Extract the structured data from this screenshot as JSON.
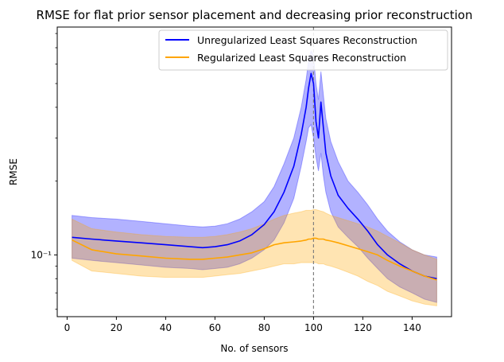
{
  "chart_data": {
    "type": "line",
    "title": "RMSE for flat prior sensor placement and decreasing prior reconstruction",
    "xlabel": "No. of sensors",
    "ylabel": "RMSE",
    "xlim": [
      -4,
      156
    ],
    "ylim": [
      0.056,
      0.85
    ],
    "yscale": "log",
    "x_ticks": [
      0,
      20,
      40,
      60,
      80,
      100,
      120,
      140
    ],
    "y_tick_major": [
      0.1
    ],
    "y_tick_major_labels": [
      "10⁻¹"
    ],
    "y_tick_minor": [
      0.06,
      0.07,
      0.08,
      0.09,
      0.2,
      0.3,
      0.4,
      0.5,
      0.6,
      0.7,
      0.8
    ],
    "grid": false,
    "legend": "top-right",
    "vline": {
      "x": 100,
      "color": "#808080",
      "style": "dashed"
    },
    "x": [
      2,
      10,
      20,
      30,
      40,
      50,
      55,
      60,
      65,
      70,
      75,
      80,
      84,
      88,
      92,
      95,
      97,
      98,
      99,
      100,
      101,
      102,
      103,
      104,
      105,
      107,
      110,
      114,
      118,
      122,
      126,
      130,
      135,
      140,
      145,
      150
    ],
    "series": [
      {
        "name": "Unregularized Least Squares Reconstruction",
        "color": "#0000ff",
        "band_color": "#0000ff",
        "values": [
          0.118,
          0.116,
          0.114,
          0.112,
          0.11,
          0.108,
          0.107,
          0.108,
          0.11,
          0.114,
          0.121,
          0.133,
          0.15,
          0.18,
          0.23,
          0.31,
          0.4,
          0.48,
          0.55,
          0.5,
          0.35,
          0.3,
          0.42,
          0.33,
          0.26,
          0.21,
          0.175,
          0.155,
          0.14,
          0.125,
          0.11,
          0.1,
          0.092,
          0.086,
          0.082,
          0.08
        ],
        "lower": [
          0.097,
          0.095,
          0.093,
          0.091,
          0.089,
          0.088,
          0.087,
          0.088,
          0.089,
          0.092,
          0.097,
          0.105,
          0.115,
          0.135,
          0.17,
          0.23,
          0.29,
          0.33,
          0.34,
          0.3,
          0.25,
          0.22,
          0.26,
          0.21,
          0.18,
          0.15,
          0.13,
          0.118,
          0.108,
          0.097,
          0.088,
          0.08,
          0.074,
          0.07,
          0.066,
          0.064
        ],
        "upper": [
          0.145,
          0.142,
          0.14,
          0.137,
          0.134,
          0.131,
          0.13,
          0.131,
          0.134,
          0.14,
          0.15,
          0.165,
          0.19,
          0.235,
          0.3,
          0.4,
          0.52,
          0.62,
          0.68,
          0.65,
          0.5,
          0.43,
          0.56,
          0.45,
          0.36,
          0.29,
          0.24,
          0.2,
          0.18,
          0.16,
          0.14,
          0.125,
          0.113,
          0.105,
          0.1,
          0.098
        ]
      },
      {
        "name": "Regularized Least Squares Reconstruction",
        "color": "#ffa500",
        "band_color": "#ffa500",
        "values": [
          0.115,
          0.105,
          0.101,
          0.099,
          0.097,
          0.096,
          0.096,
          0.097,
          0.098,
          0.1,
          0.102,
          0.106,
          0.11,
          0.112,
          0.113,
          0.114,
          0.115,
          0.116,
          0.116,
          0.117,
          0.117,
          0.116,
          0.116,
          0.116,
          0.115,
          0.114,
          0.112,
          0.109,
          0.106,
          0.103,
          0.1,
          0.095,
          0.09,
          0.086,
          0.082,
          0.079
        ],
        "lower": [
          0.095,
          0.086,
          0.084,
          0.082,
          0.081,
          0.081,
          0.081,
          0.082,
          0.083,
          0.084,
          0.086,
          0.088,
          0.09,
          0.092,
          0.092,
          0.093,
          0.093,
          0.093,
          0.093,
          0.093,
          0.093,
          0.092,
          0.092,
          0.092,
          0.091,
          0.09,
          0.088,
          0.085,
          0.082,
          0.078,
          0.075,
          0.071,
          0.068,
          0.065,
          0.063,
          0.062
        ],
        "upper": [
          0.14,
          0.128,
          0.124,
          0.121,
          0.119,
          0.118,
          0.118,
          0.119,
          0.121,
          0.124,
          0.128,
          0.134,
          0.14,
          0.145,
          0.148,
          0.15,
          0.152,
          0.152,
          0.152,
          0.153,
          0.153,
          0.152,
          0.151,
          0.15,
          0.148,
          0.145,
          0.142,
          0.138,
          0.134,
          0.13,
          0.125,
          0.119,
          0.112,
          0.105,
          0.1,
          0.096
        ]
      }
    ]
  }
}
